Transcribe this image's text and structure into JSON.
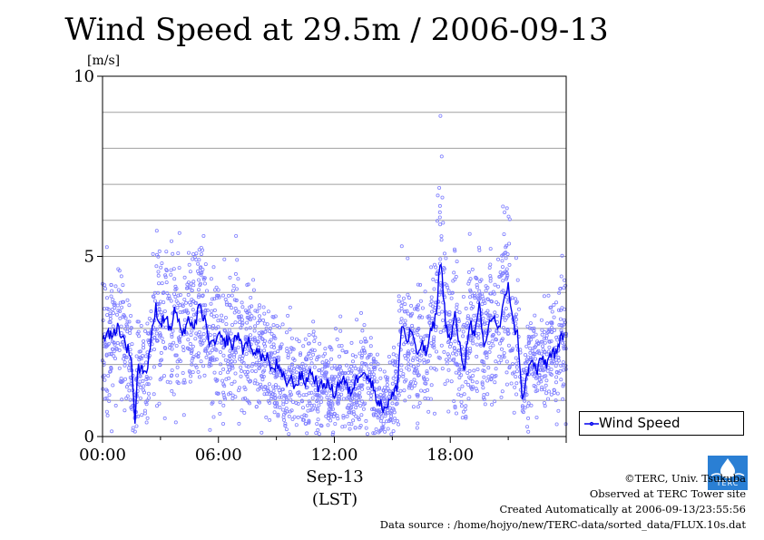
{
  "chart_data": {
    "type": "scatter",
    "title": "Wind Speed at 29.5m / 2006-09-13",
    "ylabel": "[m/s]",
    "xlabel": "Sep-13",
    "xlabel_sub": "(LST)",
    "ylim": [
      0,
      10
    ],
    "xlim": [
      0,
      24
    ],
    "y_ticks": [
      "0",
      "5",
      "10"
    ],
    "y_tick_values": [
      0,
      5,
      10
    ],
    "x_ticks": [
      "00:00",
      "06:00",
      "12:00",
      "18:00"
    ],
    "x_tick_values": [
      0,
      6,
      12,
      18
    ],
    "grid_y_step": 1,
    "grid": true,
    "legend": {
      "position": "right",
      "entries": [
        "Wind Speed"
      ]
    },
    "colors": {
      "line": "#0000ee",
      "points": "#8080ff",
      "grid": "#a0a0a0"
    },
    "series": [
      {
        "name": "Wind Speed",
        "style": "line",
        "x": [
          0,
          0.25,
          0.5,
          0.75,
          1.0,
          1.25,
          1.5,
          1.6,
          1.7,
          1.8,
          2.0,
          2.25,
          2.5,
          2.75,
          3.0,
          3.25,
          3.5,
          3.75,
          4.0,
          4.25,
          4.5,
          4.75,
          5.0,
          5.25,
          5.5,
          5.75,
          6.0,
          6.25,
          6.5,
          6.75,
          7.0,
          7.25,
          7.5,
          7.75,
          8.0,
          8.25,
          8.5,
          8.75,
          9.0,
          9.25,
          9.5,
          9.75,
          10.0,
          10.25,
          10.5,
          10.75,
          11.0,
          11.25,
          11.5,
          11.75,
          12.0,
          12.25,
          12.5,
          12.75,
          13.0,
          13.25,
          13.5,
          13.75,
          14.0,
          14.25,
          14.5,
          14.75,
          15.0,
          15.25,
          15.5,
          15.75,
          16.0,
          16.25,
          16.5,
          16.75,
          17.0,
          17.25,
          17.5,
          17.75,
          18.0,
          18.25,
          18.5,
          18.75,
          19.0,
          19.25,
          19.5,
          19.75,
          20.0,
          20.25,
          20.5,
          20.75,
          21.0,
          21.25,
          21.5,
          21.75,
          22.0,
          22.25,
          22.5,
          22.75,
          23.0,
          23.25,
          23.5,
          23.75
        ],
        "y": [
          2.6,
          3.0,
          2.7,
          3.1,
          2.8,
          2.5,
          2.2,
          1.0,
          0.3,
          1.8,
          2.0,
          1.7,
          2.6,
          3.6,
          3.1,
          3.4,
          2.9,
          3.6,
          3.0,
          2.8,
          3.3,
          3.0,
          3.6,
          3.3,
          2.7,
          2.5,
          2.8,
          2.6,
          2.7,
          2.5,
          2.9,
          2.4,
          2.7,
          2.3,
          2.5,
          2.1,
          2.3,
          1.8,
          2.0,
          1.7,
          1.5,
          1.6,
          1.4,
          1.7,
          1.5,
          1.8,
          1.6,
          1.3,
          1.5,
          1.4,
          1.2,
          1.5,
          1.6,
          1.2,
          1.4,
          1.7,
          1.9,
          1.6,
          1.4,
          1.0,
          0.8,
          0.9,
          1.1,
          1.4,
          3.2,
          2.6,
          3.0,
          2.2,
          2.6,
          2.3,
          2.9,
          3.3,
          5.0,
          3.2,
          2.6,
          3.4,
          2.4,
          1.9,
          3.3,
          2.7,
          3.6,
          2.4,
          3.1,
          3.4,
          2.9,
          3.6,
          4.3,
          3.1,
          2.8,
          0.9,
          1.8,
          2.1,
          1.8,
          2.2,
          2.0,
          2.4,
          2.2,
          2.8
        ]
      }
    ]
  },
  "legend": {
    "label": "Wind Speed"
  },
  "credits": {
    "line1": "©TERC, Univ. Tsukuba",
    "line2": "Observed at TERC Tower site",
    "line3": "Created Automatically at 2006-09-13/23:55:56",
    "line4": "Data source : /home/hojyo/new/TERC-data/sorted_data/FLUX.10s.dat"
  },
  "logo": {
    "icon": "terc-logo-icon",
    "text": "TERC"
  }
}
